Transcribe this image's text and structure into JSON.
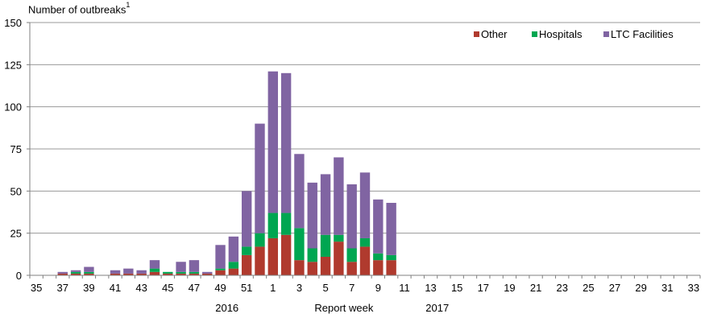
{
  "chart_data": {
    "type": "bar",
    "stacked": true,
    "title": "",
    "ylabel": "Number of outbreaks",
    "ylabel_sup": "1",
    "xlabel": "Report week",
    "ylim": [
      0,
      150
    ],
    "yticks": [
      0,
      25,
      50,
      75,
      100,
      125,
      150
    ],
    "grid": true,
    "legend_position": "top-right",
    "year_labels": [
      {
        "label": "2016",
        "after_week_index": 15
      },
      {
        "label": "2017",
        "after_week_index": 31
      }
    ],
    "weeks": [
      "35",
      "36",
      "37",
      "38",
      "39",
      "40",
      "41",
      "42",
      "43",
      "44",
      "45",
      "46",
      "47",
      "48",
      "49",
      "50",
      "51",
      "52",
      "1",
      "2",
      "3",
      "4",
      "5",
      "6",
      "7",
      "8",
      "9",
      "10",
      "11",
      "12",
      "13",
      "14",
      "15",
      "16",
      "17",
      "18",
      "19",
      "20",
      "21",
      "22",
      "23",
      "24",
      "25",
      "26",
      "27",
      "28",
      "29",
      "30",
      "31",
      "32",
      "33"
    ],
    "tick_labels": [
      "35",
      "37",
      "39",
      "41",
      "43",
      "45",
      "47",
      "49",
      "51",
      "1",
      "3",
      "5",
      "7",
      "9",
      "11",
      "13",
      "15",
      "17",
      "19",
      "21",
      "23",
      "25",
      "27",
      "29",
      "31",
      "33"
    ],
    "series": [
      {
        "name": "Other",
        "color": "#b03a2e",
        "values": [
          0,
          0,
          1,
          1,
          1,
          0,
          1,
          1,
          1,
          2,
          1,
          1,
          1,
          1,
          3,
          4,
          12,
          17,
          22,
          24,
          9,
          8,
          11,
          20,
          8,
          17,
          9,
          9,
          0,
          0,
          0,
          0,
          0,
          0,
          0,
          0,
          0,
          0,
          0,
          0,
          0,
          0,
          0,
          0,
          0,
          0,
          0,
          0,
          0,
          0,
          0
        ]
      },
      {
        "name": "Hospitals",
        "color": "#00a651",
        "values": [
          0,
          0,
          0,
          1,
          1,
          0,
          0,
          0,
          0,
          2,
          1,
          1,
          1,
          0,
          1,
          4,
          5,
          8,
          15,
          13,
          19,
          8,
          13,
          4,
          8,
          5,
          4,
          3,
          0,
          0,
          0,
          0,
          0,
          0,
          0,
          0,
          0,
          0,
          0,
          0,
          0,
          0,
          0,
          0,
          0,
          0,
          0,
          0,
          0,
          0,
          0
        ]
      },
      {
        "name": "LTC Facilities",
        "color": "#8064a2",
        "values": [
          0,
          0,
          1,
          1,
          3,
          0,
          2,
          3,
          2,
          5,
          0,
          6,
          7,
          1,
          14,
          15,
          33,
          65,
          84,
          83,
          44,
          39,
          36,
          46,
          38,
          39,
          32,
          31,
          0,
          0,
          0,
          0,
          0,
          0,
          0,
          0,
          0,
          0,
          0,
          0,
          0,
          0,
          0,
          0,
          0,
          0,
          0,
          0,
          0,
          0,
          0
        ]
      }
    ]
  }
}
